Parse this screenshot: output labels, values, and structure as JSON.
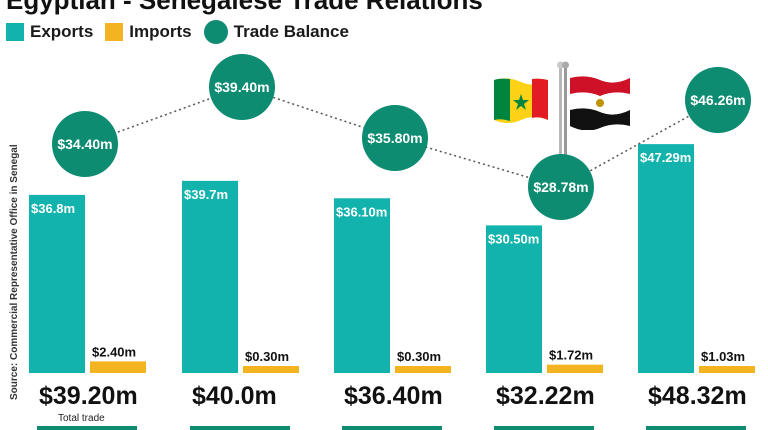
{
  "title": "Egyptian - Senegalese Trade Relations",
  "legend": {
    "exports": "Exports",
    "imports": "Imports",
    "balance": "Trade Balance"
  },
  "source": "Source: Commercial Representative Office in Senegal",
  "colors": {
    "exports": "#12b3ad",
    "imports": "#f4b422",
    "balance": "#0e8c72",
    "line": "#555555"
  },
  "chart_data": {
    "type": "bar",
    "categories": [
      "",
      "",
      "",
      "",
      ""
    ],
    "series": [
      {
        "name": "Exports",
        "values": [
          36.8,
          39.7,
          36.1,
          30.5,
          47.29
        ],
        "labels": [
          "$36.8m",
          "$39.7m",
          "$36.10m",
          "$30.50m",
          "$47.29m"
        ]
      },
      {
        "name": "Imports",
        "values": [
          2.4,
          0.3,
          0.3,
          1.72,
          1.03
        ],
        "labels": [
          "$2.40m",
          "$0.30m",
          "$0.30m",
          "$1.72m",
          "$1.03m"
        ]
      },
      {
        "name": "Trade Balance",
        "values": [
          34.4,
          39.4,
          35.8,
          28.78,
          46.26
        ],
        "labels": [
          "$34.40m",
          "$39.40m",
          "$35.80m",
          "$28.78m",
          "$46.26m"
        ]
      }
    ],
    "totals": [
      "$39.20m",
      "$40.0m",
      "$36.40m",
      "$32.22m",
      "$48.32m"
    ],
    "total_note": "Total trade",
    "ylim": [
      0,
      50
    ]
  }
}
